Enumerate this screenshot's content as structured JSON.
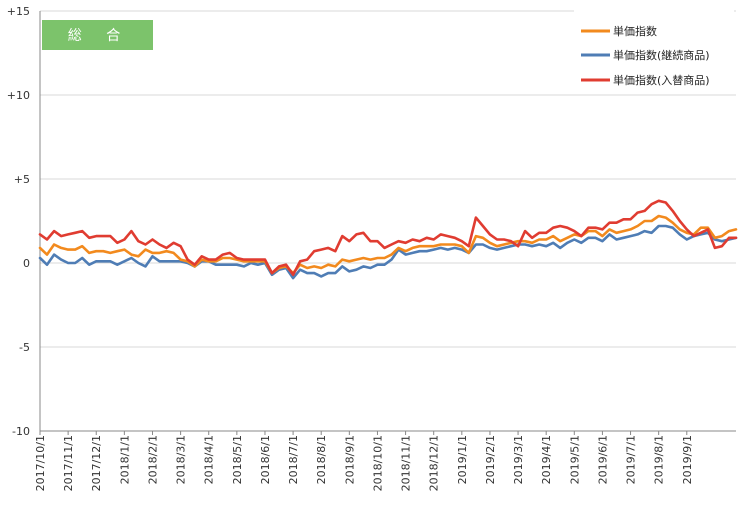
{
  "colors": {
    "series_1": "#F28A1E",
    "series_2": "#4F7DB5",
    "series_3": "#E03C31",
    "badge": "#7CC36B",
    "grid": "#d9d9d9",
    "axis": "#888888"
  },
  "badge": {
    "label": "総 合"
  },
  "chart_data": {
    "type": "line",
    "title": "総 合",
    "ylim": [
      -10,
      15
    ],
    "yticks": [
      -10,
      -5,
      0,
      5,
      10,
      15
    ],
    "ytick_labels": [
      "-10",
      "-5",
      "0",
      "+5",
      "+10",
      "+15"
    ],
    "xticks": [
      {
        "i": 0,
        "label": "2017/10/1"
      },
      {
        "i": 4,
        "label": "2017/11/1"
      },
      {
        "i": 8,
        "label": "2017/12/1"
      },
      {
        "i": 12,
        "label": "2018/1/1"
      },
      {
        "i": 16,
        "label": "2018/2/1"
      },
      {
        "i": 20,
        "label": "2018/3/1"
      },
      {
        "i": 24,
        "label": "2018/4/1"
      },
      {
        "i": 28,
        "label": "2018/5/1"
      },
      {
        "i": 32,
        "label": "2018/6/1"
      },
      {
        "i": 36,
        "label": "2018/7/1"
      },
      {
        "i": 40,
        "label": "2018/8/1"
      },
      {
        "i": 44,
        "label": "2018/9/1"
      },
      {
        "i": 48,
        "label": "2018/10/1"
      },
      {
        "i": 52,
        "label": "2018/11/1"
      },
      {
        "i": 56,
        "label": "2018/12/1"
      },
      {
        "i": 60,
        "label": "2019/1/1"
      },
      {
        "i": 64,
        "label": "2019/2/1"
      },
      {
        "i": 68,
        "label": "2019/3/1"
      },
      {
        "i": 72,
        "label": "2019/4/1"
      },
      {
        "i": 76,
        "label": "2019/5/1"
      },
      {
        "i": 80,
        "label": "2019/6/1"
      },
      {
        "i": 84,
        "label": "2019/7/1"
      },
      {
        "i": 88,
        "label": "2019/8/1"
      },
      {
        "i": 92,
        "label": "2019/9/1"
      }
    ],
    "grid": true,
    "legend_position": "top-right",
    "series": [
      {
        "name": "単価指数",
        "color": "#F28A1E",
        "values": [
          0.9,
          0.5,
          1.1,
          0.9,
          0.8,
          0.8,
          1.0,
          0.6,
          0.7,
          0.7,
          0.6,
          0.7,
          0.8,
          0.5,
          0.4,
          0.8,
          0.6,
          0.6,
          0.7,
          0.6,
          0.2,
          0.1,
          -0.2,
          0.2,
          0.1,
          0.1,
          0.3,
          0.3,
          0.2,
          0.1,
          0.1,
          0.1,
          0.1,
          -0.6,
          -0.3,
          -0.2,
          -0.6,
          -0.1,
          -0.3,
          -0.2,
          -0.3,
          -0.1,
          -0.2,
          0.2,
          0.1,
          0.2,
          0.3,
          0.2,
          0.3,
          0.3,
          0.5,
          0.9,
          0.7,
          0.9,
          1.0,
          1.0,
          1.0,
          1.1,
          1.1,
          1.1,
          1.0,
          0.6,
          1.6,
          1.5,
          1.2,
          1.0,
          1.1,
          1.2,
          1.3,
          1.3,
          1.2,
          1.4,
          1.4,
          1.6,
          1.3,
          1.5,
          1.7,
          1.6,
          1.9,
          1.9,
          1.6,
          2.0,
          1.8,
          1.9,
          2.0,
          2.2,
          2.5,
          2.5,
          2.8,
          2.7,
          2.4,
          2.0,
          1.8,
          1.7,
          2.1,
          2.1,
          1.5,
          1.6,
          1.9,
          2.0
        ]
      },
      {
        "name": "単価指数(継続商品)",
        "color": "#4F7DB5",
        "values": [
          0.3,
          -0.1,
          0.5,
          0.2,
          0.0,
          0.0,
          0.3,
          -0.1,
          0.1,
          0.1,
          0.1,
          -0.1,
          0.1,
          0.3,
          0.0,
          -0.2,
          0.4,
          0.1,
          0.1,
          0.1,
          0.1,
          0.0,
          -0.2,
          0.1,
          0.1,
          -0.1,
          -0.1,
          -0.1,
          -0.1,
          -0.2,
          0.0,
          -0.1,
          0.0,
          -0.7,
          -0.4,
          -0.3,
          -0.9,
          -0.4,
          -0.6,
          -0.6,
          -0.8,
          -0.6,
          -0.6,
          -0.2,
          -0.5,
          -0.4,
          -0.2,
          -0.3,
          -0.1,
          -0.1,
          0.2,
          0.8,
          0.5,
          0.6,
          0.7,
          0.7,
          0.8,
          0.9,
          0.8,
          0.9,
          0.8,
          0.6,
          1.1,
          1.1,
          0.9,
          0.8,
          0.9,
          1.0,
          1.1,
          1.1,
          1.0,
          1.1,
          1.0,
          1.2,
          0.9,
          1.2,
          1.4,
          1.2,
          1.5,
          1.5,
          1.3,
          1.7,
          1.4,
          1.5,
          1.6,
          1.7,
          1.9,
          1.8,
          2.2,
          2.2,
          2.1,
          1.7,
          1.4,
          1.6,
          1.7,
          1.8,
          1.4,
          1.3,
          1.4,
          1.5
        ]
      },
      {
        "name": "単価指数(入替商品)",
        "color": "#E03C31",
        "values": [
          1.7,
          1.4,
          1.9,
          1.6,
          1.7,
          1.8,
          1.9,
          1.5,
          1.6,
          1.6,
          1.6,
          1.2,
          1.4,
          1.9,
          1.3,
          1.1,
          1.4,
          1.1,
          0.9,
          1.2,
          1.0,
          0.2,
          -0.1,
          0.4,
          0.2,
          0.2,
          0.5,
          0.6,
          0.3,
          0.2,
          0.2,
          0.2,
          0.2,
          -0.6,
          -0.2,
          -0.1,
          -0.7,
          0.1,
          0.2,
          0.7,
          0.8,
          0.9,
          0.7,
          1.6,
          1.3,
          1.7,
          1.8,
          1.3,
          1.3,
          0.9,
          1.1,
          1.3,
          1.2,
          1.4,
          1.3,
          1.5,
          1.4,
          1.7,
          1.6,
          1.5,
          1.3,
          1.0,
          2.7,
          2.2,
          1.7,
          1.4,
          1.4,
          1.3,
          1.0,
          1.9,
          1.5,
          1.8,
          1.8,
          2.1,
          2.2,
          2.1,
          1.9,
          1.6,
          2.1,
          2.1,
          2.0,
          2.4,
          2.4,
          2.6,
          2.6,
          3.0,
          3.1,
          3.5,
          3.7,
          3.6,
          3.1,
          2.5,
          2.0,
          1.6,
          1.8,
          2.0,
          0.9,
          1.0,
          1.5,
          1.5
        ]
      }
    ]
  }
}
